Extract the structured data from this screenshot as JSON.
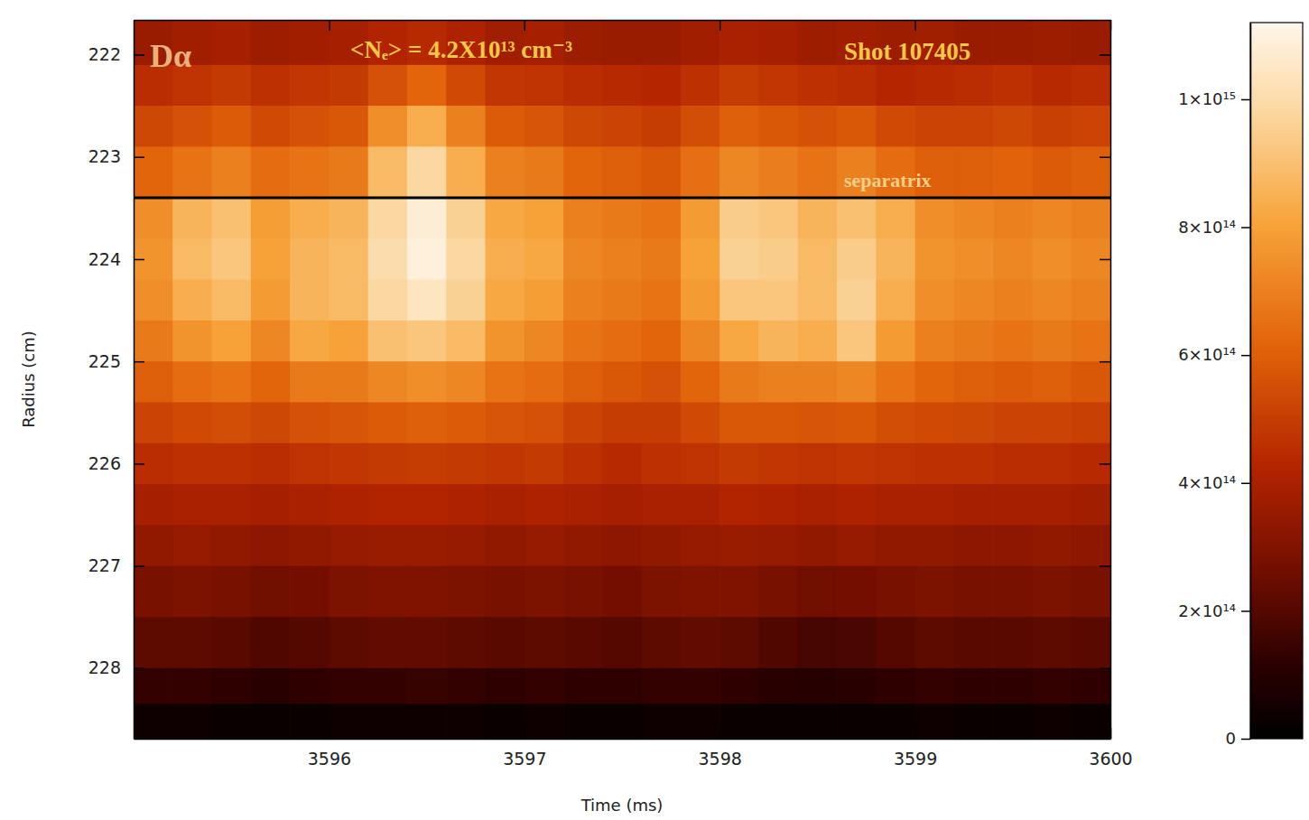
{
  "chart_data": {
    "type": "heatmap",
    "annotations": [
      {
        "text": "Dα"
      },
      {
        "text": "<Nₑ> = 4.2X10¹³ cm⁻³"
      },
      {
        "text": "Shot 107405"
      }
    ],
    "hlines": [
      {
        "value": 223.4,
        "label": "separatrix"
      }
    ],
    "x_label": "Time (ms)",
    "y_label": "Radius (cm)",
    "xlim": [
      3595.0,
      3600
    ],
    "ylim": [
      221.66,
      228.69
    ],
    "xticks": [
      3596,
      3597,
      3598,
      3599,
      3600
    ],
    "yticks": [
      222,
      223,
      224,
      225,
      226,
      227,
      228
    ],
    "zlim": [
      0,
      1120000000000000.0
    ],
    "zticks": [
      0,
      {
        "value": 200000000000000.0,
        "label": "2×10¹⁴"
      },
      {
        "value": 400000000000000.0,
        "label": "4×10¹⁴"
      },
      {
        "value": 600000000000000.0,
        "label": "6×10¹⁴"
      },
      {
        "value": 800000000000000.0,
        "label": "8×10¹⁴"
      },
      {
        "value": 1000000000000000.0,
        "label": "1×10¹⁵"
      }
    ],
    "x_edges": [
      3595.0,
      3595.2,
      3595.4,
      3595.6,
      3595.8,
      3596.0,
      3596.2,
      3596.4,
      3596.6,
      3596.8,
      3597.0,
      3597.2,
      3597.4,
      3597.6,
      3597.8,
      3598.0,
      3598.2,
      3598.4,
      3598.6,
      3598.8,
      3599.0,
      3599.2,
      3599.4,
      3599.6,
      3599.8,
      3600.0
    ],
    "y_edges": [
      221.66,
      222.1,
      222.5,
      222.9,
      223.4,
      223.8,
      224.2,
      224.6,
      225.0,
      225.4,
      225.8,
      226.2,
      226.6,
      227.0,
      227.5,
      228.0,
      228.35,
      228.69
    ],
    "z": [
      [
        360000000000000.0,
        380000000000000.0,
        390000000000000.0,
        370000000000000.0,
        380000000000000.0,
        390000000000000.0,
        420000000000000.0,
        440000000000000.0,
        410000000000000.0,
        380000000000000.0,
        390000000000000.0,
        370000000000000.0,
        360000000000000.0,
        360000000000000.0,
        380000000000000.0,
        400000000000000.0,
        390000000000000.0,
        370000000000000.0,
        380000000000000.0,
        370000000000000.0,
        380000000000000.0,
        360000000000000.0,
        360000000000000.0,
        370000000000000.0,
        360000000000000.0
      ],
      [
        450000000000000.0,
        470000000000000.0,
        490000000000000.0,
        460000000000000.0,
        480000000000000.0,
        490000000000000.0,
        560000000000000.0,
        620000000000000.0,
        540000000000000.0,
        480000000000000.0,
        470000000000000.0,
        450000000000000.0,
        440000000000000.0,
        430000000000000.0,
        460000000000000.0,
        500000000000000.0,
        480000000000000.0,
        460000000000000.0,
        450000000000000.0,
        430000000000000.0,
        440000000000000.0,
        450000000000000.0,
        460000000000000.0,
        440000000000000.0,
        450000000000000.0
      ],
      [
        530000000000000.0,
        560000000000000.0,
        590000000000000.0,
        540000000000000.0,
        560000000000000.0,
        580000000000000.0,
        740000000000000.0,
        840000000000000.0,
        700000000000000.0,
        590000000000000.0,
        570000000000000.0,
        530000000000000.0,
        520000000000000.0,
        500000000000000.0,
        550000000000000.0,
        600000000000000.0,
        580000000000000.0,
        560000000000000.0,
        580000000000000.0,
        540000000000000.0,
        520000000000000.0,
        520000000000000.0,
        530000000000000.0,
        510000000000000.0,
        520000000000000.0
      ],
      [
        620000000000000.0,
        660000000000000.0,
        700000000000000.0,
        640000000000000.0,
        660000000000000.0,
        680000000000000.0,
        880000000000000.0,
        980000000000000.0,
        840000000000000.0,
        700000000000000.0,
        680000000000000.0,
        620000000000000.0,
        600000000000000.0,
        580000000000000.0,
        650000000000000.0,
        720000000000000.0,
        690000000000000.0,
        660000000000000.0,
        700000000000000.0,
        640000000000000.0,
        600000000000000.0,
        600000000000000.0,
        610000000000000.0,
        590000000000000.0,
        600000000000000.0
      ],
      [
        740000000000000.0,
        860000000000000.0,
        900000000000000.0,
        790000000000000.0,
        840000000000000.0,
        860000000000000.0,
        980000000000000.0,
        1080000000000000.0,
        960000000000000.0,
        820000000000000.0,
        800000000000000.0,
        700000000000000.0,
        680000000000000.0,
        660000000000000.0,
        780000000000000.0,
        940000000000000.0,
        920000000000000.0,
        860000000000000.0,
        900000000000000.0,
        840000000000000.0,
        740000000000000.0,
        720000000000000.0,
        700000000000000.0,
        720000000000000.0,
        700000000000000.0
      ],
      [
        760000000000000.0,
        880000000000000.0,
        920000000000000.0,
        800000000000000.0,
        860000000000000.0,
        880000000000000.0,
        1000000000000000.0,
        1090000000000000.0,
        980000000000000.0,
        840000000000000.0,
        820000000000000.0,
        720000000000000.0,
        700000000000000.0,
        680000000000000.0,
        800000000000000.0,
        960000000000000.0,
        940000000000000.0,
        880000000000000.0,
        940000000000000.0,
        860000000000000.0,
        760000000000000.0,
        740000000000000.0,
        720000000000000.0,
        740000000000000.0,
        720000000000000.0
      ],
      [
        740000000000000.0,
        840000000000000.0,
        880000000000000.0,
        780000000000000.0,
        860000000000000.0,
        880000000000000.0,
        980000000000000.0,
        1040000000000000.0,
        960000000000000.0,
        820000000000000.0,
        790000000000000.0,
        700000000000000.0,
        680000000000000.0,
        660000000000000.0,
        780000000000000.0,
        920000000000000.0,
        920000000000000.0,
        880000000000000.0,
        960000000000000.0,
        840000000000000.0,
        740000000000000.0,
        720000000000000.0,
        700000000000000.0,
        720000000000000.0,
        700000000000000.0
      ],
      [
        680000000000000.0,
        760000000000000.0,
        800000000000000.0,
        720000000000000.0,
        820000000000000.0,
        800000000000000.0,
        900000000000000.0,
        920000000000000.0,
        880000000000000.0,
        760000000000000.0,
        720000000000000.0,
        660000000000000.0,
        640000000000000.0,
        620000000000000.0,
        720000000000000.0,
        820000000000000.0,
        860000000000000.0,
        840000000000000.0,
        920000000000000.0,
        780000000000000.0,
        700000000000000.0,
        680000000000000.0,
        660000000000000.0,
        680000000000000.0,
        660000000000000.0
      ],
      [
        600000000000000.0,
        640000000000000.0,
        660000000000000.0,
        620000000000000.0,
        680000000000000.0,
        680000000000000.0,
        720000000000000.0,
        740000000000000.0,
        720000000000000.0,
        660000000000000.0,
        640000000000000.0,
        600000000000000.0,
        580000000000000.0,
        560000000000000.0,
        620000000000000.0,
        680000000000000.0,
        700000000000000.0,
        700000000000000.0,
        720000000000000.0,
        660000000000000.0,
        620000000000000.0,
        600000000000000.0,
        590000000000000.0,
        600000000000000.0,
        580000000000000.0
      ],
      [
        520000000000000.0,
        540000000000000.0,
        550000000000000.0,
        530000000000000.0,
        560000000000000.0,
        570000000000000.0,
        590000000000000.0,
        600000000000000.0,
        590000000000000.0,
        570000000000000.0,
        560000000000000.0,
        520000000000000.0,
        500000000000000.0,
        500000000000000.0,
        540000000000000.0,
        580000000000000.0,
        580000000000000.0,
        570000000000000.0,
        580000000000000.0,
        550000000000000.0,
        540000000000000.0,
        530000000000000.0,
        520000000000000.0,
        520000000000000.0,
        510000000000000.0
      ],
      [
        450000000000000.0,
        460000000000000.0,
        460000000000000.0,
        450000000000000.0,
        470000000000000.0,
        480000000000000.0,
        490000000000000.0,
        500000000000000.0,
        490000000000000.0,
        480000000000000.0,
        490000000000000.0,
        460000000000000.0,
        440000000000000.0,
        460000000000000.0,
        470000000000000.0,
        490000000000000.0,
        480000000000000.0,
        470000000000000.0,
        480000000000000.0,
        470000000000000.0,
        460000000000000.0,
        460000000000000.0,
        450000000000000.0,
        450000000000000.0,
        440000000000000.0
      ],
      [
        390000000000000.0,
        400000000000000.0,
        400000000000000.0,
        390000000000000.0,
        400000000000000.0,
        410000000000000.0,
        420000000000000.0,
        420000000000000.0,
        410000000000000.0,
        400000000000000.0,
        410000000000000.0,
        400000000000000.0,
        390000000000000.0,
        400000000000000.0,
        400000000000000.0,
        420000000000000.0,
        410000000000000.0,
        400000000000000.0,
        410000000000000.0,
        400000000000000.0,
        400000000000000.0,
        390000000000000.0,
        390000000000000.0,
        390000000000000.0,
        380000000000000.0
      ],
      [
        340000000000000.0,
        350000000000000.0,
        340000000000000.0,
        330000000000000.0,
        340000000000000.0,
        350000000000000.0,
        360000000000000.0,
        360000000000000.0,
        350000000000000.0,
        340000000000000.0,
        350000000000000.0,
        340000000000000.0,
        330000000000000.0,
        340000000000000.0,
        350000000000000.0,
        360000000000000.0,
        350000000000000.0,
        340000000000000.0,
        350000000000000.0,
        340000000000000.0,
        340000000000000.0,
        330000000000000.0,
        330000000000000.0,
        340000000000000.0,
        330000000000000.0
      ],
      [
        280000000000000.0,
        290000000000000.0,
        280000000000000.0,
        260000000000000.0,
        270000000000000.0,
        290000000000000.0,
        300000000000000.0,
        300000000000000.0,
        290000000000000.0,
        280000000000000.0,
        290000000000000.0,
        280000000000000.0,
        270000000000000.0,
        290000000000000.0,
        300000000000000.0,
        300000000000000.0,
        280000000000000.0,
        260000000000000.0,
        270000000000000.0,
        280000000000000.0,
        290000000000000.0,
        280000000000000.0,
        280000000000000.0,
        290000000000000.0,
        280000000000000.0
      ],
      [
        220000000000000.0,
        220000000000000.0,
        210000000000000.0,
        190000000000000.0,
        200000000000000.0,
        220000000000000.0,
        230000000000000.0,
        230000000000000.0,
        220000000000000.0,
        210000000000000.0,
        220000000000000.0,
        210000000000000.0,
        200000000000000.0,
        220000000000000.0,
        230000000000000.0,
        220000000000000.0,
        190000000000000.0,
        170000000000000.0,
        180000000000000.0,
        200000000000000.0,
        220000000000000.0,
        210000000000000.0,
        210000000000000.0,
        220000000000000.0,
        210000000000000.0
      ],
      [
        130000000000000.0,
        130000000000000.0,
        120000000000000.0,
        110000000000000.0,
        120000000000000.0,
        130000000000000.0,
        130000000000000.0,
        140000000000000.0,
        130000000000000.0,
        120000000000000.0,
        130000000000000.0,
        120000000000000.0,
        120000000000000.0,
        130000000000000.0,
        130000000000000.0,
        120000000000000.0,
        110000000000000.0,
        100000000000000.0,
        110000000000000.0,
        120000000000000.0,
        130000000000000.0,
        120000000000000.0,
        120000000000000.0,
        130000000000000.0,
        120000000000000.0
      ],
      [
        40000000000000.0,
        40000000000000.0,
        30000000000000.0,
        30000000000000.0,
        30000000000000.0,
        40000000000000.0,
        40000000000000.0,
        40000000000000.0,
        40000000000000.0,
        30000000000000.0,
        40000000000000.0,
        30000000000000.0,
        30000000000000.0,
        40000000000000.0,
        40000000000000.0,
        30000000000000.0,
        30000000000000.0,
        30000000000000.0,
        30000000000000.0,
        30000000000000.0,
        40000000000000.0,
        30000000000000.0,
        30000000000000.0,
        40000000000000.0,
        30000000000000.0
      ]
    ]
  }
}
